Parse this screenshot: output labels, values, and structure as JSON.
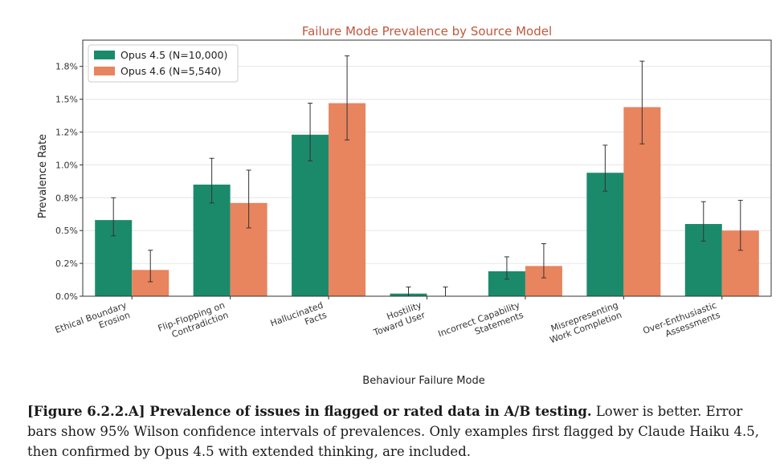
{
  "chart_data": {
    "type": "bar",
    "title": "Failure Mode Prevalence by Source Model",
    "xlabel": "Behaviour Failure Mode",
    "ylabel": "Prevalence Rate",
    "ylim": [
      0,
      1.95
    ],
    "yticks": [
      0.0,
      0.25,
      0.5,
      0.75,
      1.0,
      1.25,
      1.5,
      1.75
    ],
    "ytick_labels": [
      "0.0%",
      "0.2%",
      "0.5%",
      "0.8%",
      "1.0%",
      "1.2%",
      "1.5%",
      "1.8%"
    ],
    "grid": true,
    "legend_position": "top-left",
    "categories": [
      [
        "Ethical Boundary",
        "Erosion"
      ],
      [
        "Flip-Flopping on",
        "Contradiction"
      ],
      [
        "Hallucinated",
        "Facts"
      ],
      [
        "Hostility",
        "Toward User"
      ],
      [
        "Incorrect Capability",
        "Statements"
      ],
      [
        "Misrepresenting",
        "Work Completion"
      ],
      [
        "Over-Enthusiastic",
        "Assessments"
      ]
    ],
    "series": [
      {
        "name": "Opus 4.5 (N=10,000)",
        "color": "#1b8a6b",
        "values": [
          0.58,
          0.85,
          1.23,
          0.02,
          0.19,
          0.94,
          0.55
        ],
        "err_low": [
          0.46,
          0.71,
          1.03,
          0.0,
          0.13,
          0.8,
          0.42
        ],
        "err_high": [
          0.75,
          1.05,
          1.47,
          0.07,
          0.3,
          1.15,
          0.72
        ]
      },
      {
        "name": "Opus 4.6 (N=5,540)",
        "color": "#e8845e",
        "values": [
          0.2,
          0.71,
          1.47,
          0.0,
          0.23,
          1.44,
          0.5
        ],
        "err_low": [
          0.11,
          0.52,
          1.19,
          0.0,
          0.14,
          1.16,
          0.35
        ],
        "err_high": [
          0.35,
          0.96,
          1.83,
          0.07,
          0.4,
          1.79,
          0.73
        ]
      }
    ]
  },
  "caption": {
    "bold": "[Figure 6.2.2.A] Prevalence of issues in flagged or rated data in A/B testing.",
    "text": " Lower is better. Error bars show 95% Wilson confidence intervals of prevalences. Only examples first flagged by Claude Haiku 4.5, then confirmed by Opus 4.5 with extended thinking, are included."
  }
}
